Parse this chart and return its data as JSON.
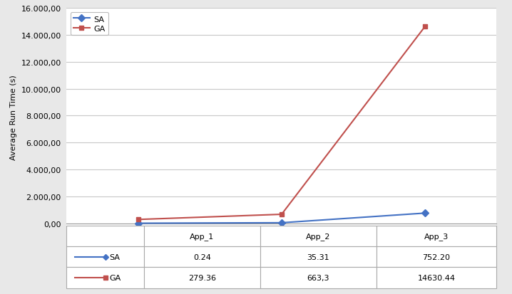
{
  "x_labels": [
    "App_1",
    "App_2",
    "App_3"
  ],
  "sa_values": [
    0.24,
    35.31,
    752.2
  ],
  "ga_values": [
    279.36,
    663.3,
    14630.44
  ],
  "sa_label": "SA",
  "ga_label": "GA",
  "sa_color": "#4472C4",
  "ga_color": "#C0504D",
  "ylabel": "Average Run Time (s)",
  "ylim": [
    -200,
    16000
  ],
  "yticks": [
    0,
    2000,
    4000,
    6000,
    8000,
    10000,
    12000,
    14000,
    16000
  ],
  "table_sa": [
    "0.24",
    "35.31",
    "752.20"
  ],
  "table_ga": [
    "279.36",
    "663,3",
    "14630.44"
  ],
  "background_color": "#e8e8e8",
  "plot_bg_color": "#ffffff",
  "grid_color": "#c8c8c8"
}
